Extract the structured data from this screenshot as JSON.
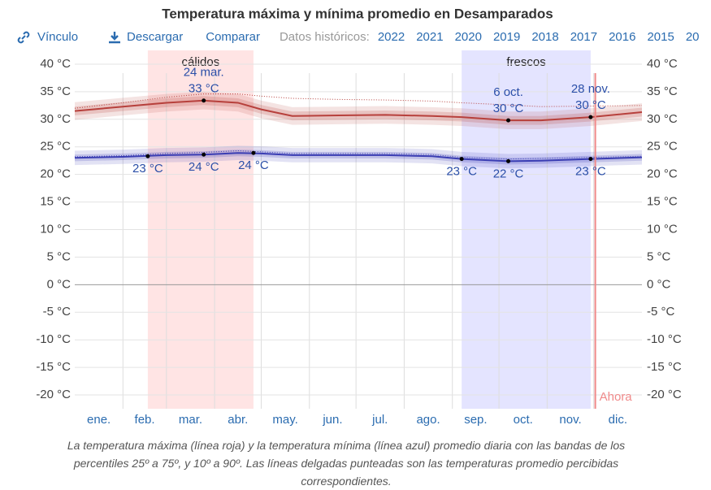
{
  "toolbar": {
    "link": "Vínculo",
    "download": "Descargar",
    "compare": "Comparar",
    "history": "Datos históricos:",
    "years": [
      "2022",
      "2021",
      "2020",
      "2019",
      "2018",
      "2017",
      "2016",
      "2015",
      "20"
    ]
  },
  "caption": "La temperatura máxima (línea roja) y la temperatura mínima (línea azul) promedio diaria con las bandas de los percentiles 25º a 75º, y 10º a 90º. Las líneas delgadas punteadas son las temperaturas promedio percibidas correspondientes.",
  "chart_data": {
    "type": "line",
    "title": "Temperatura máxima y mínima promedio en Desamparados",
    "x": [
      0,
      31,
      59,
      83,
      105,
      120,
      140,
      170,
      200,
      230,
      249,
      279,
      300,
      332,
      365
    ],
    "xlim": [
      0,
      365
    ],
    "xticks": [
      {
        "value": 15.5,
        "label": "ene."
      },
      {
        "value": 45,
        "label": "feb."
      },
      {
        "value": 74.5,
        "label": "mar."
      },
      {
        "value": 105,
        "label": "abr."
      },
      {
        "value": 135.5,
        "label": "may."
      },
      {
        "value": 166,
        "label": "jun."
      },
      {
        "value": 196.5,
        "label": "jul."
      },
      {
        "value": 227.5,
        "label": "ago."
      },
      {
        "value": 258,
        "label": "sep."
      },
      {
        "value": 288.5,
        "label": "oct."
      },
      {
        "value": 319,
        "label": "nov."
      },
      {
        "value": 349.5,
        "label": "dic."
      }
    ],
    "xgrid": [
      31,
      59,
      90,
      120,
      151,
      181,
      212,
      243,
      273,
      304,
      334
    ],
    "ylim": [
      -22.5,
      42.5
    ],
    "yticks": [
      {
        "value": 40,
        "label": "40 °C"
      },
      {
        "value": 35,
        "label": "35 °C"
      },
      {
        "value": 30,
        "label": "30 °C"
      },
      {
        "value": 25,
        "label": "25 °C"
      },
      {
        "value": 20,
        "label": "20 °C"
      },
      {
        "value": 15,
        "label": "15 °C"
      },
      {
        "value": 10,
        "label": "10 °C"
      },
      {
        "value": 5,
        "label": "5 °C"
      },
      {
        "value": 0,
        "label": "0 °C"
      },
      {
        "value": -5,
        "label": "-5 °C"
      },
      {
        "value": -10,
        "label": "-10 °C"
      },
      {
        "value": -15,
        "label": "-15 °C"
      },
      {
        "value": -20,
        "label": "-20 °C"
      }
    ],
    "grid": true,
    "series": [
      {
        "color": "#b7403c",
        "values": [
          31.5,
          32.3,
          33,
          33.4,
          33,
          31.8,
          30.6,
          30.7,
          30.8,
          30.6,
          30.4,
          29.8,
          29.8,
          30.4,
          31.3
        ],
        "p10": [
          29.9,
          30.7,
          31.4,
          31.8,
          31.4,
          30.2,
          29,
          29.1,
          29.2,
          29,
          28.8,
          28.2,
          28.2,
          28.8,
          29.7
        ],
        "p25": [
          30.7,
          31.5,
          32.2,
          32.6,
          32.2,
          31,
          29.8,
          29.9,
          30,
          29.8,
          29.6,
          29,
          29,
          29.6,
          30.5
        ],
        "p75": [
          32.3,
          33.1,
          33.8,
          34.2,
          33.8,
          32.6,
          31.4,
          31.5,
          31.6,
          31.4,
          31.2,
          30.6,
          30.6,
          31.2,
          32.1
        ],
        "p90": [
          33.1,
          33.9,
          34.6,
          35,
          34.6,
          33.4,
          32.2,
          32.3,
          32.4,
          32.2,
          32,
          31.4,
          31.4,
          32,
          32.9
        ],
        "perceived": [
          32,
          33,
          34,
          34.6,
          34.6,
          34.2,
          33.8,
          33.6,
          33.5,
          33.3,
          33,
          32.6,
          32.3,
          32.4,
          32.5
        ],
        "annotations": [
          {
            "x": 83,
            "value": 33.4,
            "date": "24 mar.",
            "label": "33 °C"
          },
          {
            "x": 279,
            "value": 29.8,
            "date": "6 oct.",
            "label": "30 °C"
          },
          {
            "x": 332,
            "value": 30.4,
            "date": "28 nov.",
            "label": "30 °C"
          }
        ]
      },
      {
        "color": "#3a3db3",
        "values": [
          23,
          23.2,
          23.5,
          23.6,
          23.9,
          23.8,
          23.5,
          23.5,
          23.5,
          23.3,
          22.8,
          22.4,
          22.5,
          22.8,
          23.1
        ],
        "p10": [
          21.7,
          21.9,
          22.2,
          22.3,
          22.6,
          22.5,
          22.2,
          22.2,
          22.2,
          22,
          21.5,
          21.1,
          21.2,
          21.5,
          21.8
        ],
        "p25": [
          22.4,
          22.6,
          22.9,
          23,
          23.3,
          23.2,
          22.9,
          22.9,
          22.9,
          22.7,
          22.2,
          21.8,
          21.9,
          22.2,
          22.5
        ],
        "p75": [
          23.6,
          23.8,
          24.1,
          24.2,
          24.5,
          24.4,
          24.1,
          24.1,
          24.1,
          23.9,
          23.4,
          23,
          23.1,
          23.4,
          23.7
        ],
        "p90": [
          24.3,
          24.5,
          24.8,
          24.9,
          25.2,
          25.1,
          24.8,
          24.8,
          24.8,
          24.6,
          24.1,
          23.7,
          23.8,
          24.1,
          24.4
        ],
        "perceived": [
          23.2,
          23.4,
          23.8,
          24,
          24.3,
          24.1,
          23.8,
          23.8,
          23.8,
          23.6,
          23.1,
          22.8,
          22.9,
          23.1,
          23.3
        ],
        "annotations": [
          {
            "x": 47,
            "value": 23.3,
            "label": "23 °C"
          },
          {
            "x": 83,
            "value": 23.6,
            "label": "24 °C"
          },
          {
            "x": 115,
            "value": 23.9,
            "label": "24 °C"
          },
          {
            "x": 249,
            "value": 22.8,
            "label": "23 °C"
          },
          {
            "x": 279,
            "value": 22.4,
            "label": "22 °C"
          },
          {
            "x": 332,
            "value": 22.8,
            "label": "23 °C"
          }
        ]
      }
    ],
    "seasons": [
      {
        "label": "cálidos",
        "start": 47,
        "end": 115,
        "color": "#ffe4e4"
      },
      {
        "label": "frescos",
        "start": 249,
        "end": 332,
        "color": "#e4e4ff"
      }
    ],
    "now": {
      "label": "Ahora",
      "x": 335,
      "color": "#f08a8a"
    }
  }
}
